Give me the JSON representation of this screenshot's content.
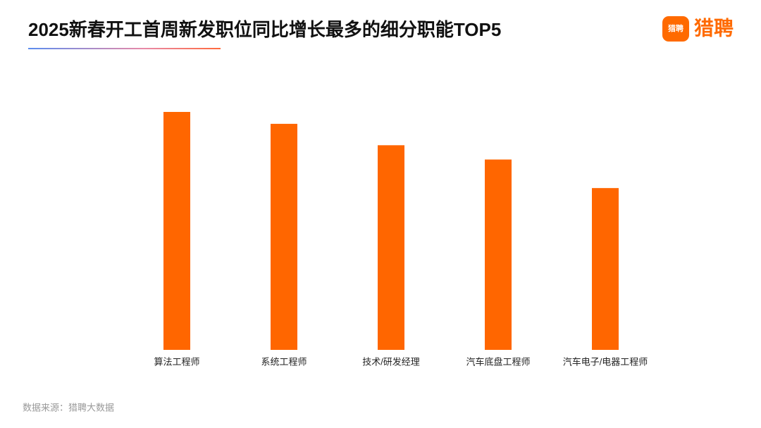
{
  "chart_data": {
    "type": "bar",
    "title": "2025新春开工首周新发职位同比增长最多的细分职能TOP5",
    "categories": [
      "算法工程师",
      "系统工程师",
      "技术/研发经理",
      "汽车底盘工程师",
      "汽车电子/电器工程师"
    ],
    "values": [
      100,
      95,
      86,
      80,
      68
    ],
    "color": "#ff6600",
    "ylim": [
      0,
      100
    ],
    "source": "数据来源：猎聘大数据",
    "logo_icon_text": "猎聘",
    "brand": "猎聘"
  }
}
